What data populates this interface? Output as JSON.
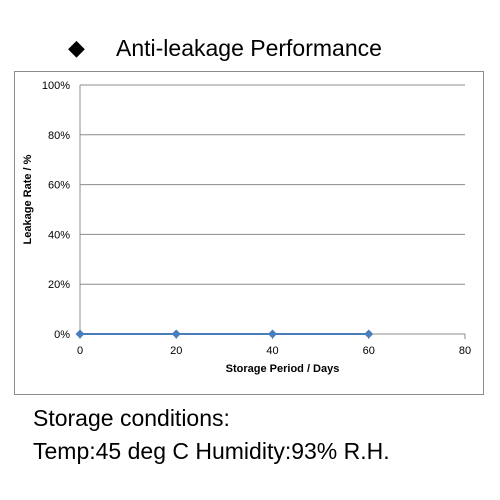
{
  "heading": {
    "bullet": "◆",
    "title": "Anti-leakage Performance"
  },
  "footer": {
    "line1": "Storage conditions:",
    "line2": "Temp:45 deg C  Humidity:93% R.H."
  },
  "chart_data": {
    "type": "line",
    "title": "",
    "xlabel": "Storage Period / Days",
    "ylabel": "Leakage Rate / %",
    "xlim": [
      0,
      80
    ],
    "ylim": [
      0,
      100
    ],
    "x_ticks": [
      0,
      20,
      40,
      60,
      80
    ],
    "x_tick_labels": [
      "0",
      "20",
      "40",
      "60",
      "80"
    ],
    "y_ticks": [
      0,
      20,
      40,
      60,
      80,
      100
    ],
    "y_tick_labels": [
      "0%",
      "20%",
      "40%",
      "60%",
      "80%",
      "100%"
    ],
    "grid": "horizontal",
    "legend": "none",
    "series": [
      {
        "x": [
          0,
          20,
          40,
          60
        ],
        "values": [
          0,
          0,
          0,
          0
        ],
        "color": "#4a7ebb",
        "marker": "diamond"
      }
    ]
  }
}
